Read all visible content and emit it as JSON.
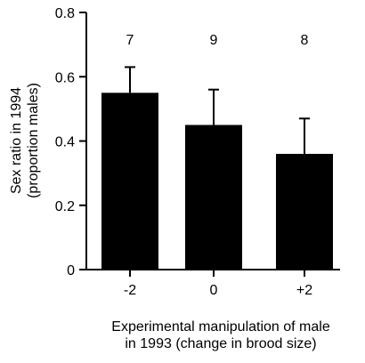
{
  "chart_data": {
    "type": "bar",
    "categories": [
      "-2",
      "0",
      "+2"
    ],
    "values": [
      0.55,
      0.45,
      0.36
    ],
    "error_upper": [
      0.63,
      0.56,
      0.47
    ],
    "sample_sizes": [
      "7",
      "9",
      "8"
    ],
    "ylim": [
      0,
      0.8
    ],
    "yticks": [
      0,
      0.2,
      0.4,
      0.6,
      0.8
    ],
    "ytick_labels": [
      "0",
      "0.2",
      "0.4",
      "0.6",
      "0.8"
    ],
    "ylabel_line1": "Sex ratio in 1994",
    "ylabel_line2": "(proportion males)",
    "xlabel_line1": "Experimental manipulation of male",
    "xlabel_line2": "in 1993 (change in brood size)",
    "bar_color": "#000000",
    "grid": false,
    "legend": "none"
  }
}
